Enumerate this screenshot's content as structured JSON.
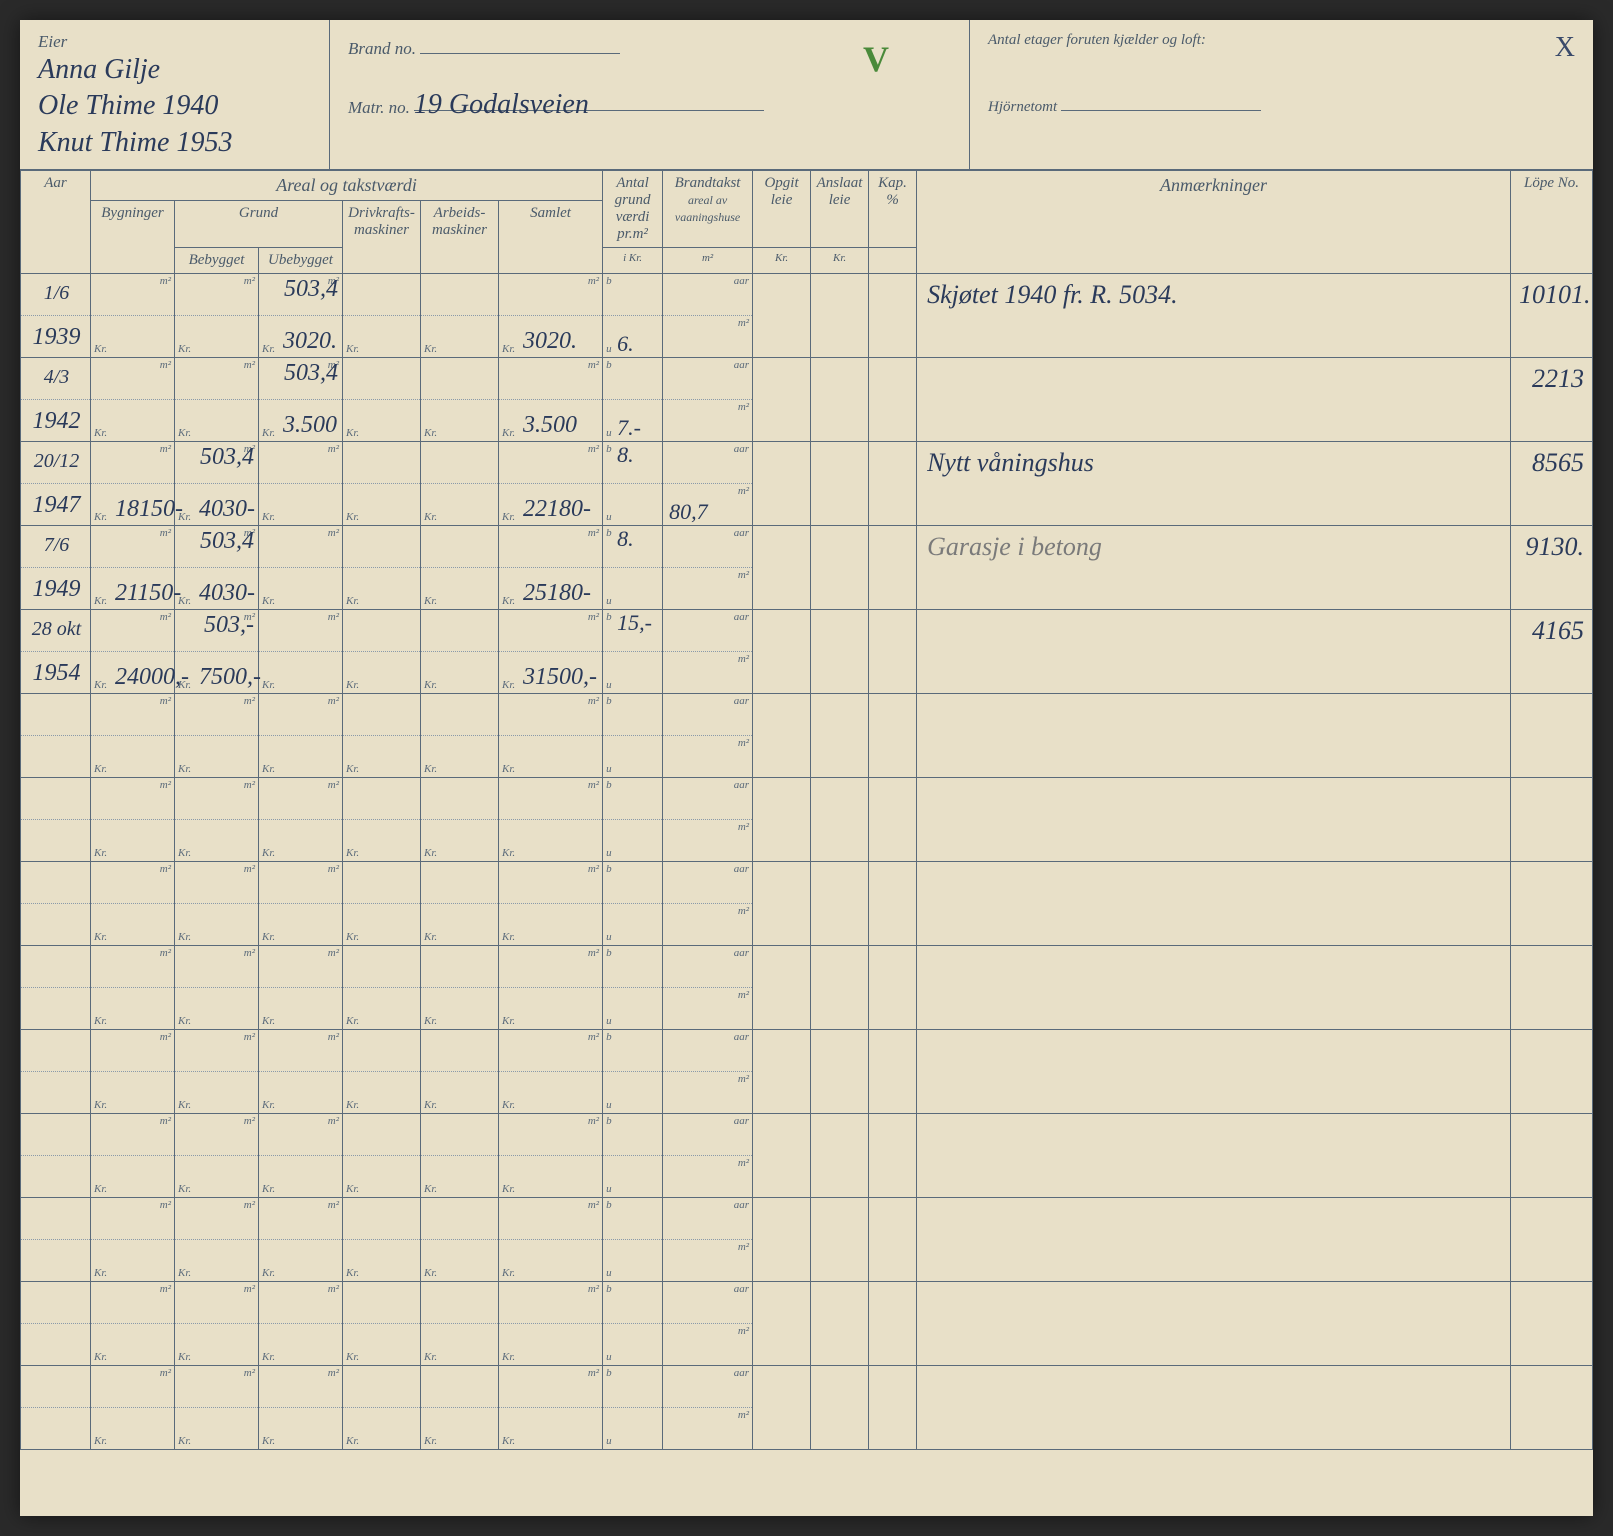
{
  "colors": {
    "paper": "#e8e0c8",
    "ink_printed": "#4a5a6a",
    "ink_handwritten": "#2a3a5a",
    "rule_line": "#5a6a7a",
    "check_green": "#4a8a3a",
    "pencil_gray": "#7a7a7a"
  },
  "header": {
    "eier_label": "Eier",
    "eier_lines": [
      "Anna Gilje",
      "Ole Thime 1940",
      "Knut Thime 1953"
    ],
    "brand_label": "Brand no.",
    "brand_value": "",
    "matr_label": "Matr. no.",
    "matr_value": "19 Godalsveien",
    "check_mark": "V",
    "antal_etager_label": "Antal etager foruten kjælder og loft:",
    "hjornetomt_label": "Hjörnetomt",
    "x_mark": "X"
  },
  "table_headers": {
    "aar": "Aar",
    "areal_group": "Areal og takstværdi",
    "grund_group": "Grund",
    "bygninger": "Bygninger",
    "bebygget": "Bebygget",
    "ubebygget": "Ubebygget",
    "drivkraft": "Drivkrafts-maskiner",
    "arbeids": "Arbeids-maskiner",
    "samlet": "Samlet",
    "antal_grund": "Antal grund værdi pr.m²",
    "antal_grund_sub": "i Kr.",
    "brandtakst": "Brandtakst",
    "brandtakst_sub": "areal av vaaningshuse",
    "opgit_leie": "Opgit leie",
    "opgit_sub": "Kr.",
    "anslaat_leie": "Anslaat leie",
    "anslaat_sub": "Kr.",
    "kap": "Kap. %",
    "anmerkninger": "Anmærkninger",
    "lope_no": "Löpe No.",
    "unit_m2": "m²",
    "unit_kr": "Kr.",
    "unit_b": "b",
    "unit_u": "u",
    "unit_aar": "aar"
  },
  "rows": [
    {
      "date_top": "1/6",
      "year": "1939",
      "ubebygget_m2": "503,4",
      "ubebygget_kr": "3020.",
      "samlet_kr": "3020.",
      "antal_u": "6.",
      "anm": "Skjøtet 1940 fr. R. 5034.",
      "lope": "10101."
    },
    {
      "date_top": "4/3",
      "year": "1942",
      "ubebygget_m2": "503,4",
      "ubebygget_kr": "3.500",
      "samlet_kr": "3.500",
      "antal_u": "7.-",
      "anm": "",
      "lope": "2213"
    },
    {
      "date_top": "20/12",
      "year": "1947",
      "bygninger_kr": "18150-",
      "bebygget_m2": "503,4",
      "bebygget_kr": "4030-",
      "samlet_kr": "22180-",
      "antal_b": "8.",
      "brandtakst_m2": "80,7",
      "anm": "Nytt våningshus",
      "lope": "8565"
    },
    {
      "date_top": "7/6",
      "year": "1949",
      "bygninger_kr": "21150-",
      "bebygget_m2": "503,4",
      "bebygget_kr": "4030-",
      "samlet_kr": "25180-",
      "antal_b": "8.",
      "anm": "Garasje i betong",
      "anm_gray": true,
      "lope": "9130."
    },
    {
      "date_top": "28 okt",
      "year": "1954",
      "bygninger_kr": "24000,-",
      "bebygget_m2": "503,-",
      "bebygget_kr": "7500,-",
      "samlet_kr": "31500,-",
      "antal_b": "15,-",
      "anm": "",
      "lope": "4165"
    }
  ],
  "empty_row_count": 9
}
